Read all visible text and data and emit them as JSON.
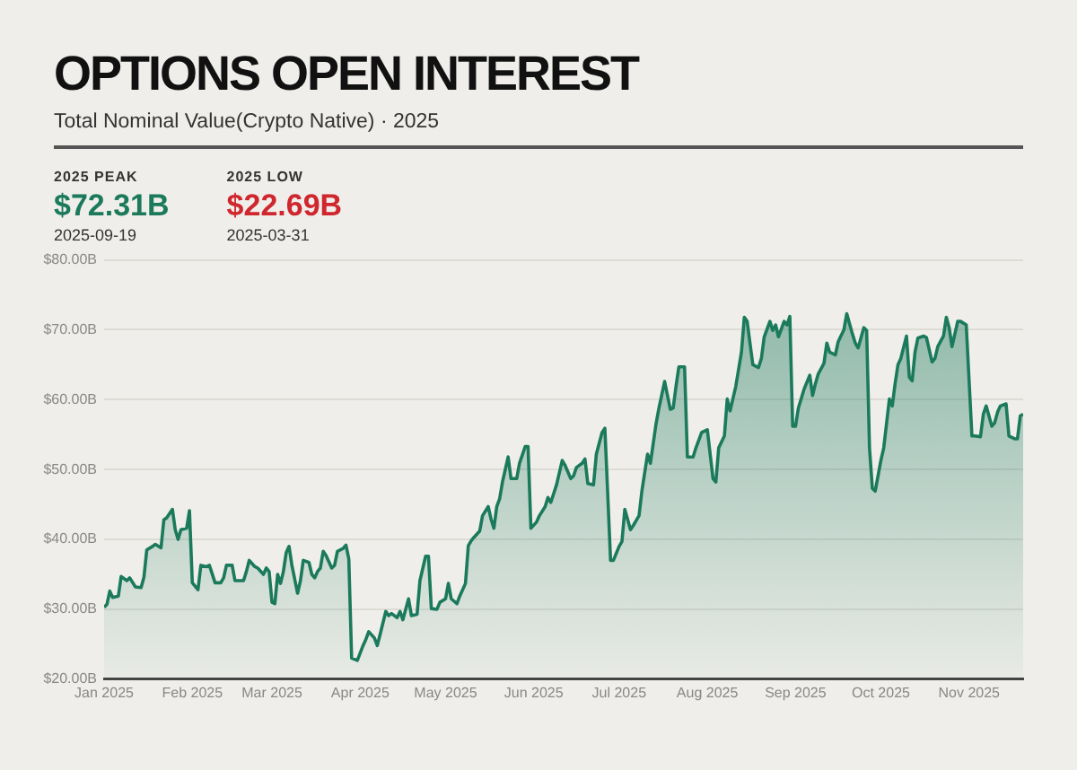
{
  "chart_data": {
    "type": "area",
    "title": "OPTIONS OPEN INTEREST",
    "subtitle": "Total Nominal Value(Crypto Native) · 2025",
    "annotations": [
      "2025 PEAK",
      "$72.31B",
      "2025-09-19",
      "2025 LOW",
      "$22.69B",
      "2025-03-31"
    ],
    "x": [
      "2025-01-01",
      "2025-01-02",
      "2025-01-03",
      "2025-01-04",
      "2025-01-06",
      "2025-01-07",
      "2025-01-09",
      "2025-01-10",
      "2025-01-12",
      "2025-01-14",
      "2025-01-15",
      "2025-01-16",
      "2025-01-18",
      "2025-01-19",
      "2025-01-21",
      "2025-01-22",
      "2025-01-23",
      "2025-01-25",
      "2025-01-26",
      "2025-01-27",
      "2025-01-28",
      "2025-01-30",
      "2025-01-31",
      "2025-02-01",
      "2025-02-03",
      "2025-02-04",
      "2025-02-06",
      "2025-02-07",
      "2025-02-09",
      "2025-02-11",
      "2025-02-12",
      "2025-02-13",
      "2025-02-15",
      "2025-02-16",
      "2025-02-19",
      "2025-02-20",
      "2025-02-21",
      "2025-02-23",
      "2025-02-24",
      "2025-02-26",
      "2025-02-27",
      "2025-02-28",
      "2025-03-01",
      "2025-03-02",
      "2025-03-03",
      "2025-03-04",
      "2025-03-05",
      "2025-03-06",
      "2025-03-07",
      "2025-03-08",
      "2025-03-10",
      "2025-03-11",
      "2025-03-12",
      "2025-03-14",
      "2025-03-15",
      "2025-03-16",
      "2025-03-17",
      "2025-03-18",
      "2025-03-19",
      "2025-03-20",
      "2025-03-22",
      "2025-03-23",
      "2025-03-24",
      "2025-03-26",
      "2025-03-27",
      "2025-03-28",
      "2025-03-29",
      "2025-03-31",
      "2025-04-02",
      "2025-04-03",
      "2025-04-04",
      "2025-04-06",
      "2025-04-07",
      "2025-04-08",
      "2025-04-10",
      "2025-04-11",
      "2025-04-12",
      "2025-04-14",
      "2025-04-15",
      "2025-04-16",
      "2025-04-18",
      "2025-04-19",
      "2025-04-21",
      "2025-04-22",
      "2025-04-24",
      "2025-04-25",
      "2025-04-26",
      "2025-04-28",
      "2025-04-29",
      "2025-05-01",
      "2025-05-02",
      "2025-05-03",
      "2025-05-05",
      "2025-05-06",
      "2025-05-08",
      "2025-05-09",
      "2025-05-10",
      "2025-05-11",
      "2025-05-13",
      "2025-05-14",
      "2025-05-16",
      "2025-05-17",
      "2025-05-18",
      "2025-05-19",
      "2025-05-20",
      "2025-05-21",
      "2025-05-23",
      "2025-05-24",
      "2025-05-26",
      "2025-05-27",
      "2025-05-29",
      "2025-05-30",
      "2025-05-31",
      "2025-06-02",
      "2025-06-03",
      "2025-06-05",
      "2025-06-06",
      "2025-06-07",
      "2025-06-09",
      "2025-06-11",
      "2025-06-12",
      "2025-06-14",
      "2025-06-15",
      "2025-06-16",
      "2025-06-18",
      "2025-06-19",
      "2025-06-20",
      "2025-06-22",
      "2025-06-23",
      "2025-06-25",
      "2025-06-26",
      "2025-06-28",
      "2025-06-29",
      "2025-07-01",
      "2025-07-02",
      "2025-07-03",
      "2025-07-05",
      "2025-07-06",
      "2025-07-08",
      "2025-07-09",
      "2025-07-11",
      "2025-07-12",
      "2025-07-14",
      "2025-07-15",
      "2025-07-17",
      "2025-07-19",
      "2025-07-20",
      "2025-07-21",
      "2025-07-22",
      "2025-07-24",
      "2025-07-25",
      "2025-07-27",
      "2025-07-28",
      "2025-07-30",
      "2025-08-01",
      "2025-08-03",
      "2025-08-04",
      "2025-08-05",
      "2025-08-07",
      "2025-08-08",
      "2025-08-09",
      "2025-08-11",
      "2025-08-13",
      "2025-08-14",
      "2025-08-15",
      "2025-08-17",
      "2025-08-19",
      "2025-08-20",
      "2025-08-21",
      "2025-08-23",
      "2025-08-24",
      "2025-08-25",
      "2025-08-26",
      "2025-08-28",
      "2025-08-29",
      "2025-08-30",
      "2025-08-31",
      "2025-09-01",
      "2025-09-02",
      "2025-09-04",
      "2025-09-06",
      "2025-09-07",
      "2025-09-08",
      "2025-09-09",
      "2025-09-11",
      "2025-09-12",
      "2025-09-13",
      "2025-09-15",
      "2025-09-16",
      "2025-09-18",
      "2025-09-19",
      "2025-09-21",
      "2025-09-22",
      "2025-09-23",
      "2025-09-25",
      "2025-09-26",
      "2025-09-27",
      "2025-09-28",
      "2025-09-29",
      "2025-10-01",
      "2025-10-02",
      "2025-10-04",
      "2025-10-05",
      "2025-10-06",
      "2025-10-07",
      "2025-10-08",
      "2025-10-10",
      "2025-10-11",
      "2025-10-12",
      "2025-10-13",
      "2025-10-14",
      "2025-10-16",
      "2025-10-17",
      "2025-10-19",
      "2025-10-20",
      "2025-10-21",
      "2025-10-23",
      "2025-10-24",
      "2025-10-25",
      "2025-10-26",
      "2025-10-28",
      "2025-10-29",
      "2025-10-31",
      "2025-11-02",
      "2025-11-03",
      "2025-11-05",
      "2025-11-06",
      "2025-11-07",
      "2025-11-09",
      "2025-11-10",
      "2025-11-11",
      "2025-11-12",
      "2025-11-14",
      "2025-11-15",
      "2025-11-17",
      "2025-11-18",
      "2025-11-19",
      "2025-11-20"
    ],
    "series": [
      {
        "color": "#1b7a5c",
        "values": [
          30.3,
          30.7,
          32.6,
          31.7,
          31.9,
          34.7,
          34.1,
          34.5,
          33.2,
          33.1,
          34.6,
          38.5,
          39.0,
          39.3,
          38.8,
          42.8,
          43.1,
          44.3,
          41.4,
          40.0,
          41.4,
          41.6,
          44.1,
          33.8,
          32.8,
          36.3,
          36.1,
          36.3,
          33.8,
          33.8,
          34.5,
          36.3,
          36.3,
          34.1,
          34.1,
          35.4,
          37.0,
          36.1,
          35.9,
          35.0,
          35.9,
          35.4,
          31.0,
          30.8,
          35.0,
          33.7,
          35.4,
          38.1,
          39.0,
          36.3,
          32.3,
          34.1,
          37.0,
          36.7,
          35.0,
          34.5,
          35.4,
          35.9,
          38.3,
          37.7,
          35.9,
          36.3,
          38.3,
          38.7,
          39.2,
          37.2,
          23.0,
          22.69,
          24.8,
          25.7,
          26.8,
          25.9,
          24.8,
          26.4,
          29.7,
          29.1,
          29.4,
          28.8,
          29.7,
          28.5,
          31.5,
          29.1,
          29.3,
          34.1,
          37.6,
          37.6,
          30.1,
          30.0,
          31.0,
          31.5,
          33.7,
          31.5,
          30.8,
          31.9,
          33.7,
          39.1,
          39.8,
          40.3,
          41.2,
          43.4,
          44.7,
          42.9,
          41.6,
          44.7,
          45.8,
          48.2,
          51.8,
          48.7,
          48.7,
          50.9,
          53.3,
          53.3,
          41.6,
          42.5,
          43.4,
          44.7,
          46.0,
          45.3,
          47.8,
          51.3,
          50.6,
          48.7,
          49.1,
          50.3,
          50.9,
          51.5,
          48.0,
          47.8,
          52.2,
          55.3,
          55.9,
          37.0,
          37.0,
          39.0,
          39.7,
          44.3,
          41.4,
          42.0,
          43.4,
          46.9,
          52.2,
          50.9,
          56.6,
          58.8,
          62.6,
          58.6,
          58.8,
          61.9,
          64.7,
          64.7,
          51.8,
          51.8,
          53.1,
          55.3,
          55.7,
          48.7,
          48.2,
          53.1,
          54.8,
          60.1,
          58.4,
          61.9,
          66.8,
          71.8,
          71.2,
          65.0,
          64.6,
          65.9,
          69.0,
          71.2,
          69.9,
          70.7,
          69.0,
          71.2,
          70.7,
          71.9,
          56.2,
          56.2,
          58.8,
          61.5,
          63.5,
          60.6,
          62.3,
          63.7,
          65.2,
          68.1,
          66.8,
          66.4,
          68.3,
          70.0,
          72.31,
          69.4,
          68.1,
          67.4,
          70.3,
          69.9,
          53.1,
          47.3,
          46.9,
          51.3,
          53.1,
          60.1,
          59.1,
          62.3,
          65.0,
          65.9,
          69.1,
          63.2,
          62.7,
          66.8,
          68.8,
          69.1,
          68.9,
          65.4,
          65.9,
          67.6,
          69.1,
          71.8,
          70.3,
          67.6,
          71.2,
          71.2,
          70.7,
          54.8,
          54.8,
          54.7,
          57.9,
          59.1,
          56.2,
          56.7,
          58.2,
          59.1,
          59.4,
          54.8,
          54.4,
          54.4,
          57.7,
          57.9
        ]
      }
    ],
    "xlim": [
      "2025-01-01",
      "2025-11-20"
    ],
    "xticks": [
      {
        "value": "2025-01-01",
        "label": "Jan 2025"
      },
      {
        "value": "2025-02-01",
        "label": "Feb 2025"
      },
      {
        "value": "2025-03-01",
        "label": "Mar 2025"
      },
      {
        "value": "2025-04-01",
        "label": "Apr 2025"
      },
      {
        "value": "2025-05-01",
        "label": "May 2025"
      },
      {
        "value": "2025-06-01",
        "label": "Jun 2025"
      },
      {
        "value": "2025-07-01",
        "label": "Jul 2025"
      },
      {
        "value": "2025-08-01",
        "label": "Aug 2025"
      },
      {
        "value": "2025-09-01",
        "label": "Sep 2025"
      },
      {
        "value": "2025-10-01",
        "label": "Oct 2025"
      },
      {
        "value": "2025-11-01",
        "label": "Nov 2025"
      }
    ],
    "ylim": [
      20,
      80
    ],
    "yticks": [
      {
        "value": 20,
        "label": "$20.00B"
      },
      {
        "value": 30,
        "label": "$30.00B"
      },
      {
        "value": 40,
        "label": "$40.00B"
      },
      {
        "value": 50,
        "label": "$50.00B"
      },
      {
        "value": 60,
        "label": "$60.00B"
      },
      {
        "value": 70,
        "label": "$70.00B"
      },
      {
        "value": 80,
        "label": "$80.00B"
      }
    ],
    "grid": "y",
    "legend": false,
    "marker": "none",
    "line_style": "solid"
  }
}
